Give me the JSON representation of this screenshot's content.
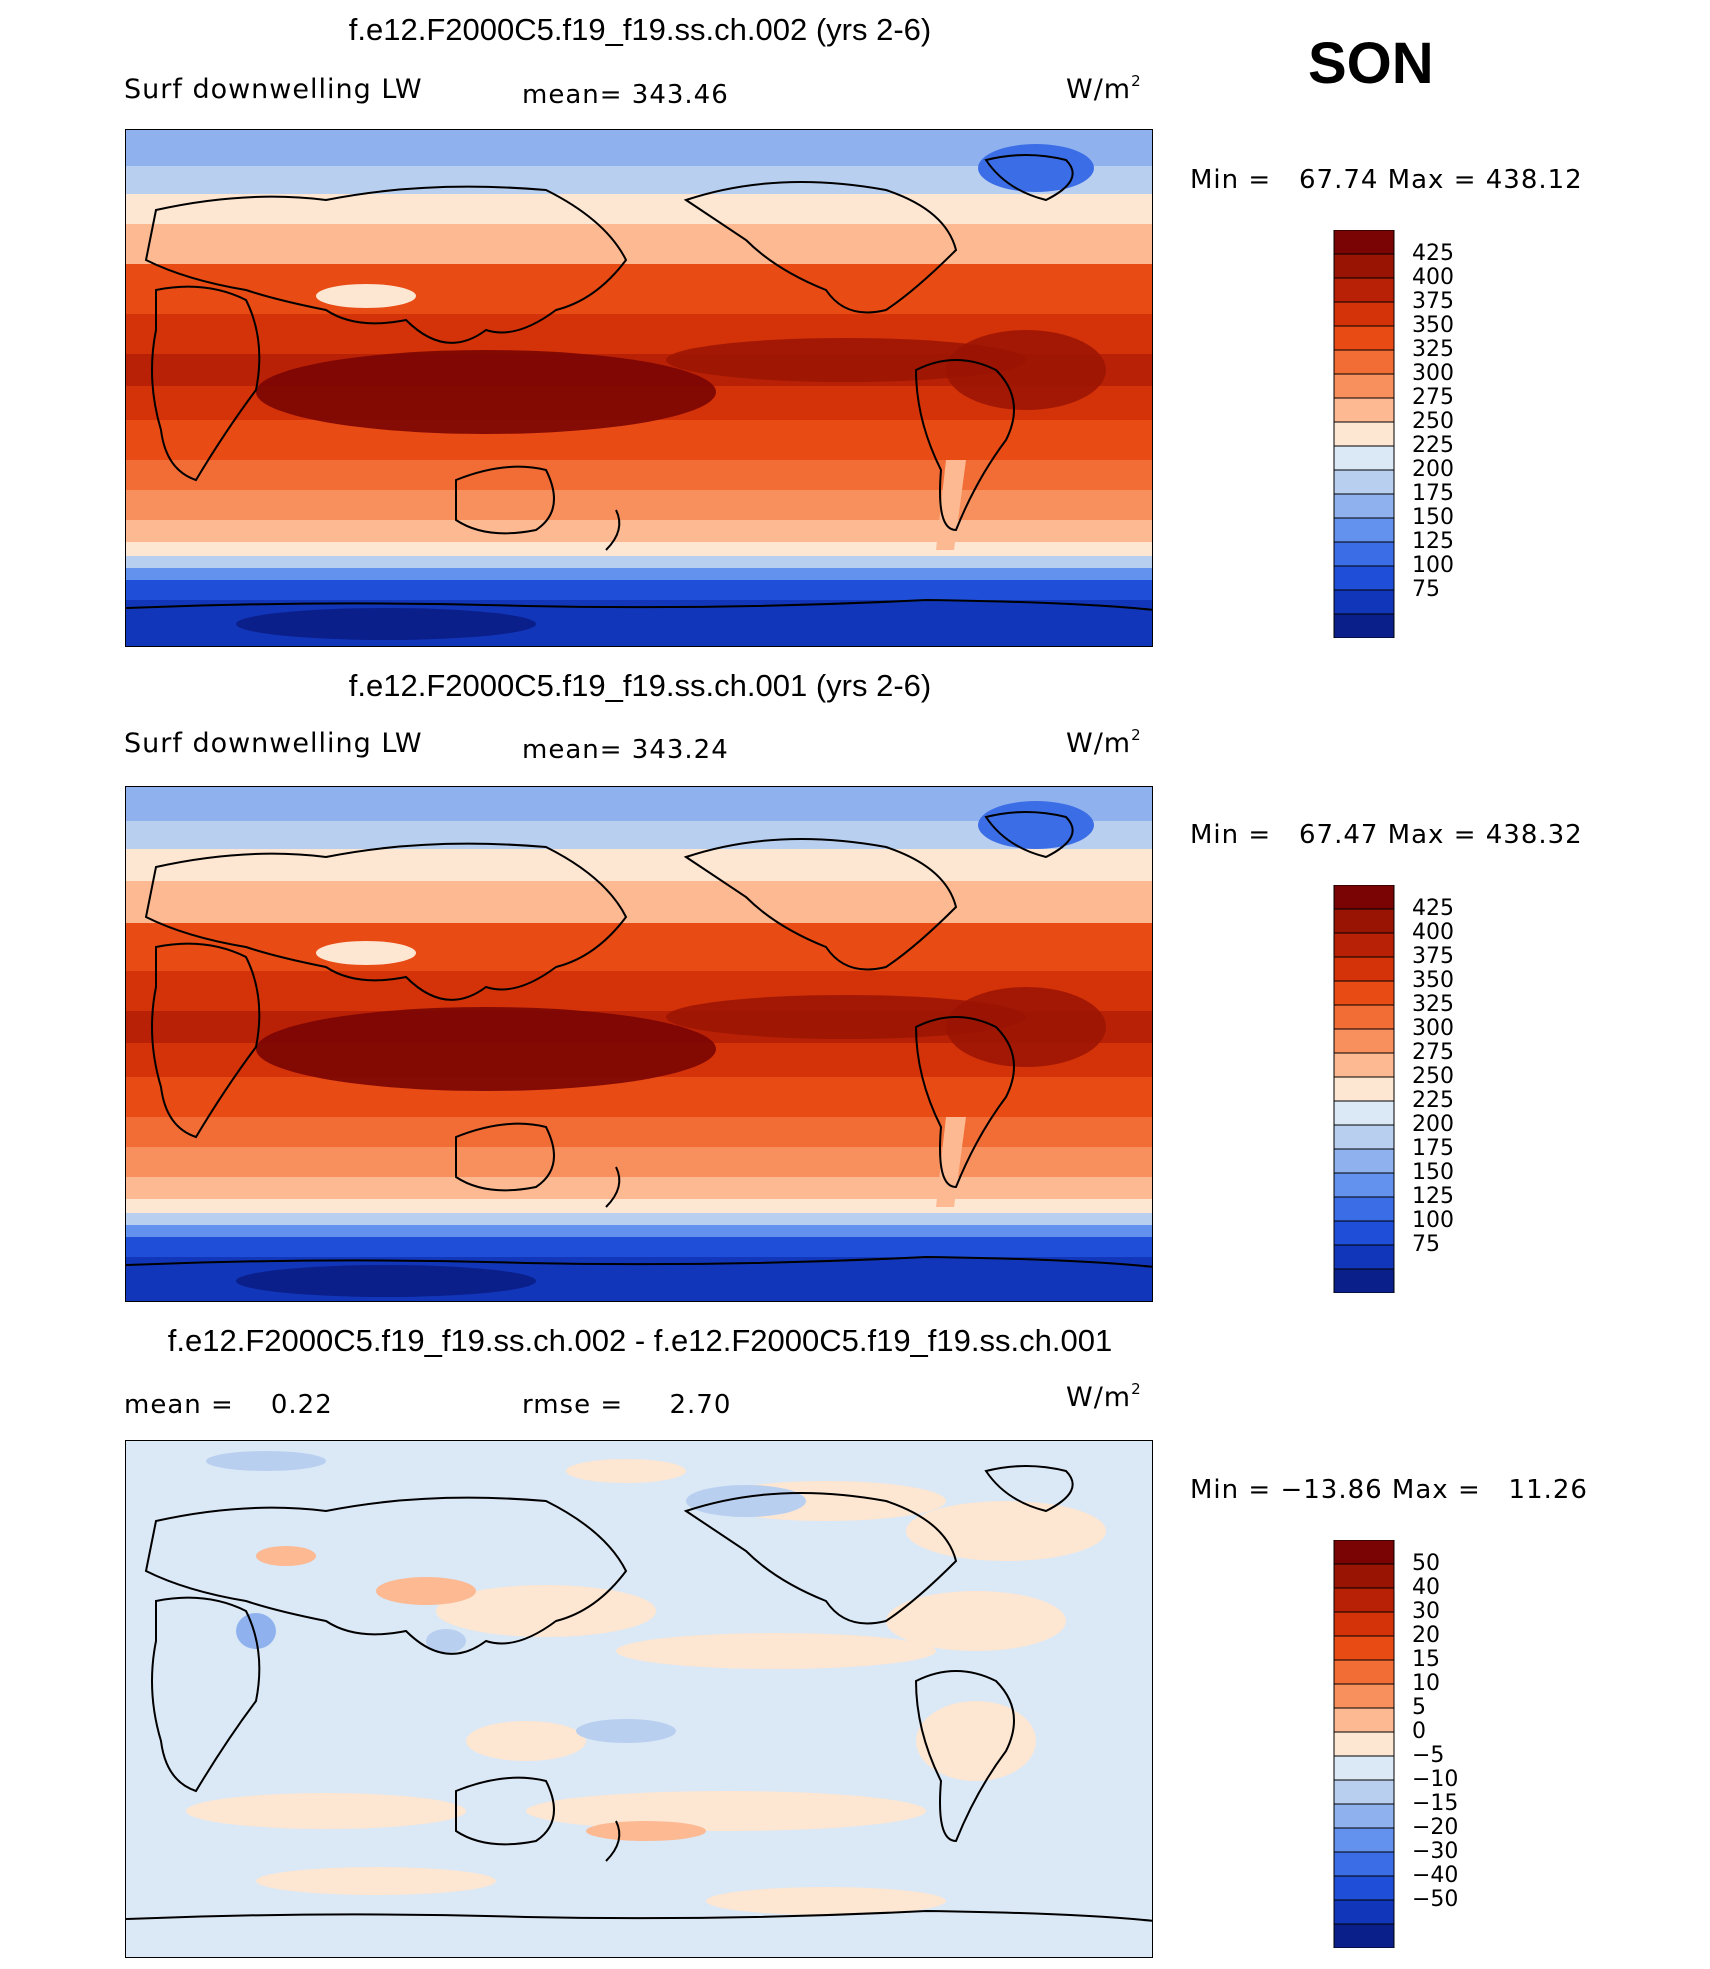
{
  "season": "SON",
  "panels": [
    {
      "title": "f.e12.F2000C5.f19_f19.ss.ch.002 (yrs 2-6)",
      "left_label": "Surf downwelling LW",
      "center_label": "mean= 343.46",
      "unit": "W/m",
      "unit_sup": "2",
      "minmax": "Min =   67.74 Max = 438.12",
      "levels": [
        "425",
        "400",
        "375",
        "350",
        "325",
        "300",
        "275",
        "250",
        "225",
        "200",
        "175",
        "150",
        "125",
        "100",
        "75"
      ],
      "colors": [
        "#7a0403",
        "#9a1404",
        "#b82106",
        "#d43208",
        "#e84b14",
        "#f26c35",
        "#f8905e",
        "#fcb992",
        "#fde6d2",
        "#dbe8f6",
        "#b8cff0",
        "#8fb2ef",
        "#6392ee",
        "#3b6de6",
        "#1f4ed8",
        "#1236ba",
        "#0a1f8a"
      ],
      "type": "abs"
    },
    {
      "title": "f.e12.F2000C5.f19_f19.ss.ch.001 (yrs 2-6)",
      "left_label": "Surf downwelling LW",
      "center_label": "mean= 343.24",
      "unit": "W/m",
      "unit_sup": "2",
      "minmax": "Min =   67.47 Max = 438.32",
      "levels": [
        "425",
        "400",
        "375",
        "350",
        "325",
        "300",
        "275",
        "250",
        "225",
        "200",
        "175",
        "150",
        "125",
        "100",
        "75"
      ],
      "colors": [
        "#7a0403",
        "#9a1404",
        "#b82106",
        "#d43208",
        "#e84b14",
        "#f26c35",
        "#f8905e",
        "#fcb992",
        "#fde6d2",
        "#dbe8f6",
        "#b8cff0",
        "#8fb2ef",
        "#6392ee",
        "#3b6de6",
        "#1f4ed8",
        "#1236ba",
        "#0a1f8a"
      ],
      "type": "abs"
    },
    {
      "title": "f.e12.F2000C5.f19_f19.ss.ch.002 - f.e12.F2000C5.f19_f19.ss.ch.001",
      "left_label": "mean =    0.22",
      "center_label": "rmse =     2.70",
      "unit": "W/m",
      "unit_sup": "2",
      "minmax": "Min = −13.86 Max =   11.26",
      "levels": [
        "50",
        "40",
        "30",
        "20",
        "15",
        "10",
        "5",
        "0",
        "−5",
        "−10",
        "−15",
        "−20",
        "−30",
        "−40",
        "−50"
      ],
      "colors": [
        "#7a0403",
        "#9a1404",
        "#b82106",
        "#d43208",
        "#e84b14",
        "#f26c35",
        "#f8905e",
        "#fcb992",
        "#fde6d2",
        "#dbe8f6",
        "#b8cff0",
        "#8fb2ef",
        "#6392ee",
        "#3b6de6",
        "#1f4ed8",
        "#1236ba",
        "#0a1f8a"
      ],
      "type": "diff"
    }
  ]
}
